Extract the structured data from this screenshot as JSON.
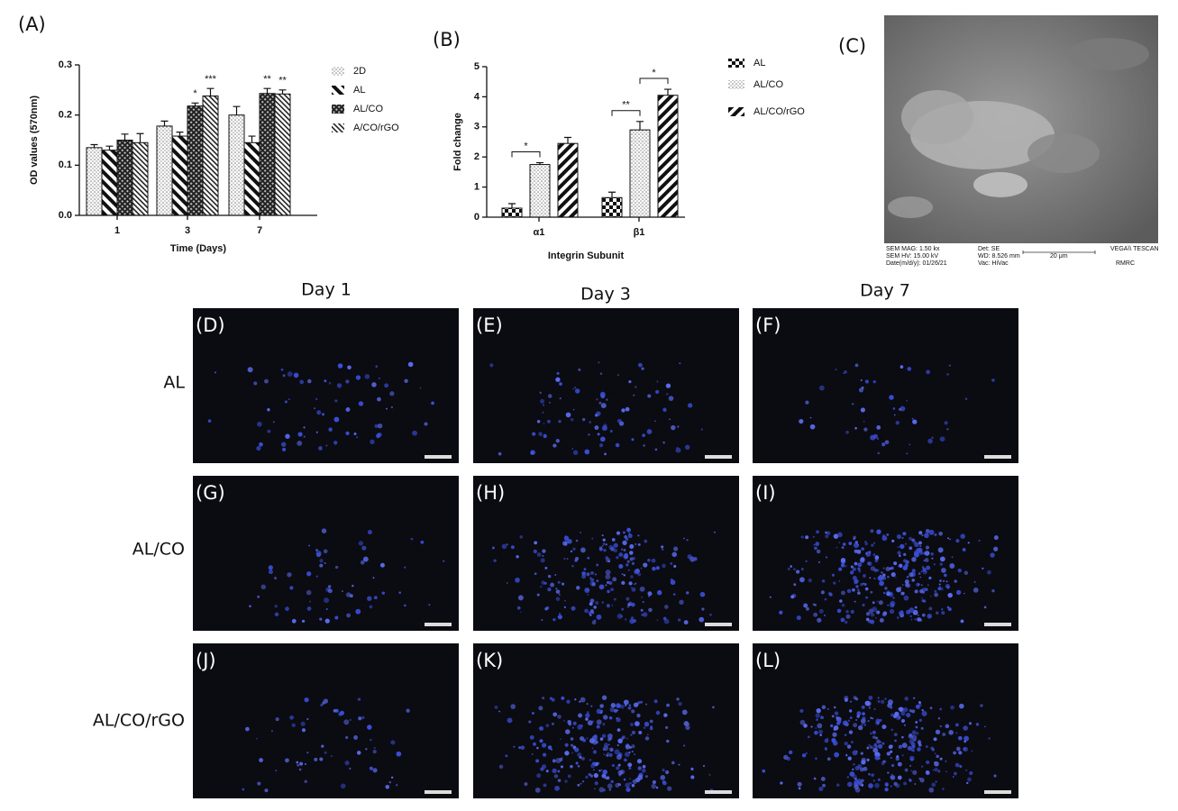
{
  "chart_data": [
    {
      "type": "bar",
      "panel": "(A)",
      "ylabel": "OD values (570nm)",
      "xlabel": "Time (Days)",
      "categories": [
        "1",
        "3",
        "7"
      ],
      "ylim": [
        0,
        0.3
      ],
      "yticks": [
        {
          "value": 0,
          "label": "0.0"
        },
        0.1,
        0.2,
        0.3
      ],
      "series": [
        {
          "name": "2D",
          "pattern": "dots",
          "values": [
            0.135,
            0.178,
            0.2
          ],
          "errors": [
            0.006,
            0.01,
            0.017
          ],
          "significance": [
            null,
            null,
            null
          ]
        },
        {
          "name": "AL",
          "pattern": "stripesThick",
          "values": [
            0.13,
            0.158,
            0.145
          ],
          "errors": [
            0.008,
            0.008,
            0.013
          ],
          "significance": [
            null,
            null,
            null
          ]
        },
        {
          "name": "AL/CO",
          "pattern": "cross",
          "values": [
            0.15,
            0.218,
            0.243
          ],
          "errors": [
            0.012,
            0.006,
            0.01
          ],
          "significance": [
            null,
            "*",
            "**"
          ]
        },
        {
          "name": "A/CO/rGO",
          "pattern": "stripesThin",
          "values": [
            0.145,
            0.238,
            0.242
          ],
          "errors": [
            0.018,
            0.015,
            0.008
          ],
          "significance": [
            null,
            "***",
            "**"
          ]
        }
      ]
    },
    {
      "type": "bar",
      "panel": "(B)",
      "ylabel": "Fold change",
      "xlabel": "Integrin Subunit",
      "categories": [
        "α1",
        "β1"
      ],
      "ylim": [
        0,
        5
      ],
      "yticks": [
        0,
        1,
        2,
        3,
        4,
        5
      ],
      "series": [
        {
          "name": "AL",
          "pattern": "checker",
          "values": [
            0.3,
            0.65
          ],
          "errors": [
            0.15,
            0.18
          ]
        },
        {
          "name": "AL/CO",
          "pattern": "dots",
          "values": [
            1.75,
            2.9
          ],
          "errors": [
            0.06,
            0.28
          ]
        },
        {
          "name": "AL/CO/rGO",
          "pattern": "stripesFwd",
          "values": [
            2.45,
            4.05
          ],
          "errors": [
            0.2,
            0.2
          ]
        }
      ],
      "brackets": [
        {
          "category": "α1",
          "series": [
            "AL",
            "AL/CO"
          ],
          "label": "*"
        },
        {
          "category": "β1",
          "series": [
            "AL",
            "AL/CO"
          ],
          "label": "**"
        },
        {
          "category": "β1",
          "series": [
            "AL/CO",
            "AL/CO/rGO"
          ],
          "label": "*"
        }
      ]
    }
  ],
  "sem": {
    "panel": "(C)",
    "info": [
      "SEM MAG: 1.50 kx",
      "Det: SE",
      "VEGA\\\\ TESCAN",
      "SEM HV: 15.00 kV",
      "WD: 8.526 mm",
      "20 μm",
      "Date(m/d/y): 01/26/21",
      "Vac: HiVac",
      "RMRC"
    ]
  },
  "micrographs": {
    "columns": [
      "Day 1",
      "Day 3",
      "Day 7"
    ],
    "rows": [
      "AL",
      "AL/CO",
      "AL/CO/rGO"
    ],
    "panels": [
      "(D)",
      "(E)",
      "(F)",
      "(G)",
      "(H)",
      "(I)",
      "(J)",
      "(K)",
      "(L)"
    ]
  }
}
